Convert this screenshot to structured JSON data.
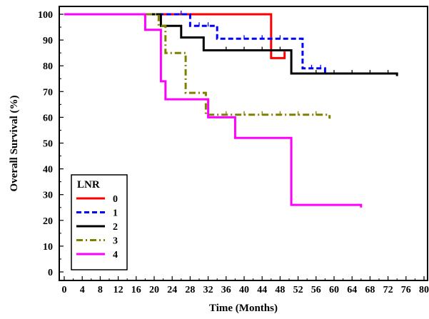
{
  "chart_data": {
    "type": "line",
    "subtype": "kaplan-meier step",
    "title": "",
    "xlabel": "Time (Months)",
    "ylabel": "Overall Survival (%)",
    "xlim": [
      0,
      80
    ],
    "ylim": [
      0,
      100
    ],
    "xticks": [
      0,
      4,
      8,
      12,
      16,
      20,
      24,
      28,
      32,
      36,
      40,
      44,
      48,
      52,
      56,
      60,
      64,
      68,
      72,
      76,
      80
    ],
    "yticks": [
      0,
      10,
      20,
      30,
      40,
      50,
      60,
      70,
      80,
      90,
      100
    ],
    "grid": false,
    "legend": {
      "title": "LNR",
      "placement": "bottom-left"
    },
    "series": [
      {
        "name": "0",
        "color": "#ff0000",
        "dash": "solid",
        "points": [
          [
            0,
            100
          ],
          [
            46,
            100
          ],
          [
            46,
            83
          ],
          [
            49,
            83
          ],
          [
            49,
            85.5
          ]
        ],
        "censor_x": []
      },
      {
        "name": "1",
        "color": "#0000ff",
        "dash": "dashed",
        "points": [
          [
            0,
            100
          ],
          [
            28,
            100
          ],
          [
            28,
            95.5
          ],
          [
            34,
            95.5
          ],
          [
            34,
            90.5
          ],
          [
            53,
            90.5
          ],
          [
            53,
            79
          ],
          [
            58,
            79
          ],
          [
            58,
            77
          ]
        ],
        "censor_x": [
          26,
          30,
          32,
          40,
          44,
          48,
          55,
          57
        ]
      },
      {
        "name": "2",
        "color": "#000000",
        "dash": "solid",
        "points": [
          [
            0,
            100
          ],
          [
            21.5,
            100
          ],
          [
            21.5,
            95.5
          ],
          [
            26,
            95.5
          ],
          [
            26,
            91
          ],
          [
            31,
            91
          ],
          [
            31,
            86
          ],
          [
            50.5,
            86
          ],
          [
            50.5,
            77
          ],
          [
            74,
            77
          ],
          [
            74,
            76
          ]
        ],
        "censor_x": [
          36,
          40,
          44,
          48,
          56,
          60,
          64,
          68,
          72
        ]
      },
      {
        "name": "3",
        "color": "#808000",
        "dash": "dashdot",
        "points": [
          [
            0,
            100
          ],
          [
            21,
            100
          ],
          [
            21,
            95.5
          ],
          [
            22.5,
            95.5
          ],
          [
            22.5,
            85
          ],
          [
            27,
            85
          ],
          [
            27,
            69.5
          ],
          [
            31.5,
            69.5
          ],
          [
            31.5,
            61
          ],
          [
            59,
            61
          ],
          [
            59,
            59.5
          ]
        ],
        "censor_x": [
          36,
          40,
          44,
          48,
          52,
          56
        ]
      },
      {
        "name": "4",
        "color": "#ff00ff",
        "dash": "solid",
        "points": [
          [
            0,
            100
          ],
          [
            18,
            100
          ],
          [
            18,
            94
          ],
          [
            21.5,
            94
          ],
          [
            21.5,
            74
          ],
          [
            22.5,
            74
          ],
          [
            22.5,
            67
          ],
          [
            32,
            67
          ],
          [
            32,
            60
          ],
          [
            38,
            60
          ],
          [
            38,
            52
          ],
          [
            50.5,
            52
          ],
          [
            50.5,
            26
          ],
          [
            66,
            26
          ],
          [
            66,
            25
          ]
        ],
        "censor_x": []
      }
    ]
  }
}
